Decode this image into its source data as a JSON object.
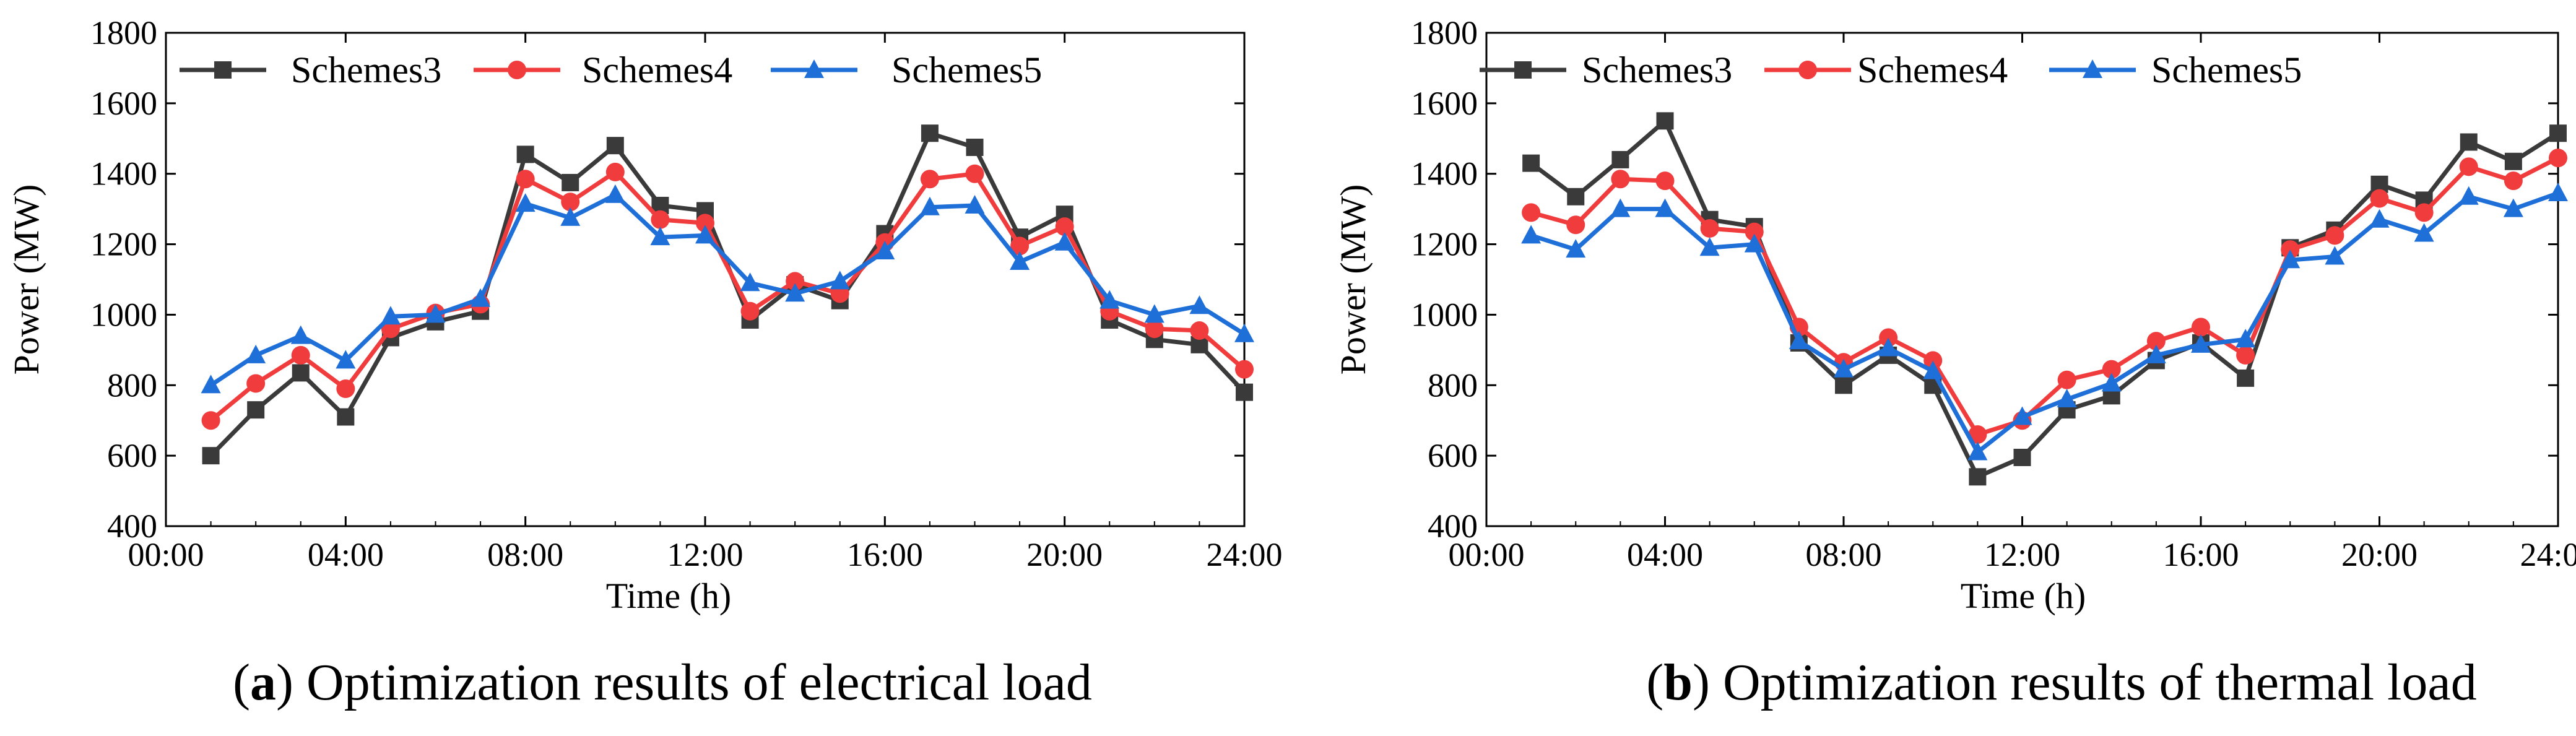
{
  "chart_data": [
    {
      "type": "line",
      "panel_letter": "a",
      "caption": "Optimization results of electrical load",
      "xlabel": "Time (h)",
      "ylabel": "Power (MW)",
      "xlim": [
        0,
        24
      ],
      "ylim": [
        400,
        1800
      ],
      "x_ticks": [
        0,
        4,
        8,
        12,
        16,
        20,
        24
      ],
      "x_tick_labels": [
        "00:00",
        "04:00",
        "08:00",
        "12:00",
        "16:00",
        "20:00",
        "24:00"
      ],
      "y_ticks": [
        400,
        600,
        800,
        1000,
        1200,
        1400,
        1600,
        1800
      ],
      "y_tick_labels": [
        "400",
        "600",
        "800",
        "1000",
        "1200",
        "1400",
        "1600",
        "1800"
      ],
      "grid": false,
      "legend_position": "top",
      "x": [
        1,
        2,
        3,
        4,
        5,
        6,
        7,
        8,
        9,
        10,
        11,
        12,
        13,
        14,
        15,
        16,
        17,
        18,
        19,
        20,
        21,
        22,
        23,
        24
      ],
      "series": [
        {
          "name": "Schemes3",
          "color": "#3a3a3a",
          "marker": "square",
          "values": [
            600,
            730,
            835,
            710,
            935,
            980,
            1010,
            1455,
            1375,
            1480,
            1310,
            1295,
            985,
            1085,
            1040,
            1230,
            1515,
            1475,
            1220,
            1285,
            985,
            930,
            915,
            780
          ]
        },
        {
          "name": "Schemes4",
          "color": "#f03c3c",
          "marker": "circle",
          "values": [
            700,
            805,
            885,
            790,
            960,
            1005,
            1030,
            1385,
            1320,
            1405,
            1270,
            1260,
            1010,
            1095,
            1060,
            1205,
            1385,
            1400,
            1195,
            1250,
            1010,
            960,
            955,
            845
          ]
        },
        {
          "name": "Schemes5",
          "color": "#1f6fd8",
          "marker": "triangle",
          "values": [
            800,
            885,
            940,
            870,
            995,
            1000,
            1045,
            1315,
            1275,
            1340,
            1220,
            1225,
            1090,
            1060,
            1095,
            1180,
            1305,
            1310,
            1150,
            1205,
            1040,
            1000,
            1025,
            945
          ]
        }
      ]
    },
    {
      "type": "line",
      "panel_letter": "b",
      "caption": "Optimization results of thermal load",
      "xlabel": "Time (h)",
      "ylabel": "Power (MW)",
      "xlim": [
        0,
        24
      ],
      "ylim": [
        400,
        1800
      ],
      "x_ticks": [
        0,
        4,
        8,
        12,
        16,
        20,
        24
      ],
      "x_tick_labels": [
        "00:00",
        "04:00",
        "08:00",
        "12:00",
        "16:00",
        "20:00",
        "24:00"
      ],
      "y_ticks": [
        400,
        600,
        800,
        1000,
        1200,
        1400,
        1600,
        1800
      ],
      "y_tick_labels": [
        "400",
        "600",
        "800",
        "1000",
        "1200",
        "1400",
        "1600",
        "1800"
      ],
      "grid": false,
      "legend_position": "top",
      "x": [
        1,
        2,
        3,
        4,
        5,
        6,
        7,
        8,
        9,
        10,
        11,
        12,
        13,
        14,
        15,
        16,
        17,
        18,
        19,
        20,
        21,
        22,
        23,
        24
      ],
      "series": [
        {
          "name": "Schemes3",
          "color": "#3a3a3a",
          "marker": "square",
          "values": [
            1430,
            1335,
            1440,
            1550,
            1270,
            1250,
            920,
            800,
            885,
            800,
            540,
            595,
            730,
            770,
            870,
            920,
            820,
            1190,
            1240,
            1370,
            1325,
            1490,
            1435,
            1515
          ]
        },
        {
          "name": "Schemes4",
          "color": "#f03c3c",
          "marker": "circle",
          "values": [
            1290,
            1255,
            1385,
            1380,
            1245,
            1235,
            965,
            865,
            935,
            870,
            660,
            700,
            815,
            845,
            925,
            965,
            885,
            1185,
            1225,
            1330,
            1290,
            1420,
            1380,
            1445
          ]
        },
        {
          "name": "Schemes5",
          "color": "#1f6fd8",
          "marker": "triangle",
          "values": [
            1225,
            1185,
            1300,
            1300,
            1190,
            1200,
            925,
            845,
            905,
            840,
            610,
            710,
            760,
            805,
            885,
            915,
            930,
            1155,
            1165,
            1270,
            1230,
            1335,
            1300,
            1345
          ]
        }
      ]
    }
  ]
}
